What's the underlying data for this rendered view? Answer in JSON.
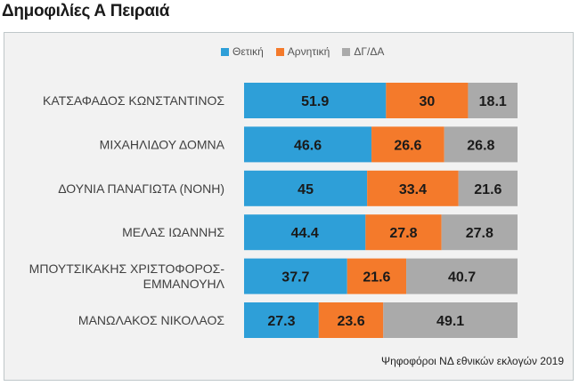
{
  "page_title": "Δημοφιλίες Α Πειραιά",
  "source": "Ψηφοφόροι ΝΔ εθνικών εκλογών 2019",
  "colors": {
    "positive": "#2e9fd8",
    "negative": "#f47a2b",
    "dkna": "#aaaaaa",
    "background": "#f2f2f2"
  },
  "chart_data": {
    "type": "bar",
    "orientation": "horizontal",
    "stacked": true,
    "title": "",
    "xlabel": "",
    "ylabel": "",
    "xlim": [
      0,
      100
    ],
    "legend_position": "top",
    "categories": [
      [
        "ΚΑΤΣΑΦΑΔΟΣ ΚΩΝΣΤΑΝΤΙΝΟΣ"
      ],
      [
        "ΜΙΧΑΗΛΙΔΟΥ ΔΟΜΝΑ"
      ],
      [
        "ΔΟΥΝΙΑ ΠΑΝΑΓΙΩΤΑ (ΝΟΝΗ)"
      ],
      [
        "ΜΕΛΑΣ ΙΩΑΝΝΗΣ"
      ],
      [
        "ΜΠΟΥΤΣΙΚΑΚΗΣ ΧΡΙΣΤΟΦΟΡΟΣ-",
        "ΕΜΜΑΝΟΥΗΛ"
      ],
      [
        "ΜΑΝΩΛΑΚΟΣ ΝΙΚΟΛΑΟΣ"
      ]
    ],
    "series": [
      {
        "name": "Θετική",
        "values": [
          51.9,
          46.6,
          45,
          44.4,
          37.7,
          27.3
        ]
      },
      {
        "name": "Αρνητική",
        "values": [
          30,
          26.6,
          33.4,
          27.8,
          21.6,
          23.6
        ]
      },
      {
        "name": "ΔΓ/ΔΑ",
        "values": [
          18.1,
          26.8,
          21.6,
          27.8,
          40.7,
          49.1
        ]
      }
    ]
  }
}
